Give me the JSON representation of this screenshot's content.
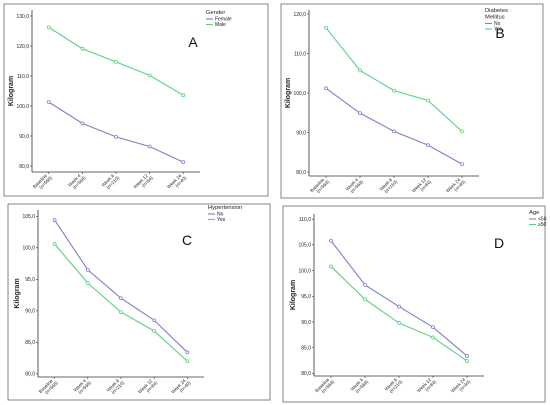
{
  "chart_data": [
    {
      "type": "line",
      "panel_label": "A",
      "ylabel": "Kilogram",
      "legend_title": "Gender",
      "legend_placement": "right",
      "categories": [
        "Baseline",
        "Week 4",
        "Week 8",
        "Week 12",
        "Week 24"
      ],
      "category_counts": [
        "(n=568)",
        "(n=568)",
        "(n=210)",
        "(n=84)",
        "(n=40)"
      ],
      "ylim": [
        78,
        132
      ],
      "yticks": [
        80,
        90,
        100,
        110,
        120,
        130
      ],
      "ytick_labels": [
        "80,0",
        "90,0",
        "100,0",
        "110,0",
        "120,0",
        "130,0"
      ],
      "series": [
        {
          "name": "Female",
          "color": "#7f7fc8",
          "values": [
            101.3,
            94.2,
            89.7,
            86.5,
            81.3
          ]
        },
        {
          "name": "Male",
          "color": "#5ad17f",
          "values": [
            126.2,
            119.1,
            114.7,
            110.2,
            103.6
          ]
        }
      ]
    },
    {
      "type": "line",
      "panel_label": "B",
      "ylabel": "Kilogram",
      "legend_title": "Diabetes Mellitus",
      "legend_placement": "right",
      "categories": [
        "Baseline",
        "Week 4",
        "Week 8",
        "Week 12",
        "Week 24"
      ],
      "category_counts": [
        "(n=568)",
        "(n=568)",
        "(n=210)",
        "(n=84)",
        "(n=40)"
      ],
      "ylim": [
        79,
        121
      ],
      "yticks": [
        80,
        90,
        100,
        110,
        120
      ],
      "ytick_labels": [
        "80,0",
        "90,0",
        "100,0",
        "110,0",
        "120,0"
      ],
      "series": [
        {
          "name": "No",
          "color": "#7f7fc8",
          "values": [
            101.2,
            94.9,
            90.3,
            86.8,
            82.0
          ]
        },
        {
          "name": "Yes",
          "color": "#5ad17f",
          "values": [
            116.5,
            105.7,
            100.6,
            98.1,
            90.3
          ]
        }
      ]
    },
    {
      "type": "line",
      "panel_label": "C",
      "ylabel": "Kilogram",
      "legend_title": "Hypertension",
      "legend_placement": "right",
      "categories": [
        "Baseline",
        "Week 4",
        "Week 8",
        "Week 12",
        "Week 24"
      ],
      "category_counts": [
        "(n=568)",
        "(n=568)",
        "(n=210)",
        "(n=84)",
        "(n=40)"
      ],
      "ylim": [
        79.5,
        106
      ],
      "yticks": [
        80,
        85,
        90,
        95,
        100,
        105
      ],
      "ytick_labels": [
        "80,0",
        "85,0",
        "90,0",
        "95,0",
        "100,0",
        "105,0"
      ],
      "series": [
        {
          "name": "No",
          "color": "#7f7fc8",
          "values": [
            104.4,
            96.5,
            92.0,
            88.5,
            83.4
          ]
        },
        {
          "name": "Yes",
          "color": "#5ad17f",
          "values": [
            100.6,
            94.4,
            89.8,
            86.8,
            82.0
          ]
        }
      ]
    },
    {
      "type": "line",
      "panel_label": "D",
      "ylabel": "Kilogram",
      "legend_title": "Age",
      "legend_placement": "right",
      "categories": [
        "Baseline",
        "Week 4",
        "Week 8",
        "Week 12",
        "Week 24"
      ],
      "category_counts": [
        "(n=568)",
        "(n=568)",
        "(n=210)",
        "(n=84)",
        "(n=40)"
      ],
      "ylim": [
        79.5,
        111
      ],
      "yticks": [
        80,
        85,
        90,
        95,
        100,
        105,
        110
      ],
      "ytick_labels": [
        "80,0",
        "85,0",
        "90,0",
        "95,0",
        "100,0",
        "105,0",
        "110,0"
      ],
      "series": [
        {
          "name": "<50",
          "color": "#7f7fc8",
          "values": [
            105.8,
            97.2,
            93.0,
            89.0,
            83.4
          ]
        },
        {
          "name": "≥50",
          "color": "#5ad17f",
          "values": [
            100.8,
            94.4,
            89.8,
            87.0,
            82.4
          ]
        }
      ]
    }
  ]
}
